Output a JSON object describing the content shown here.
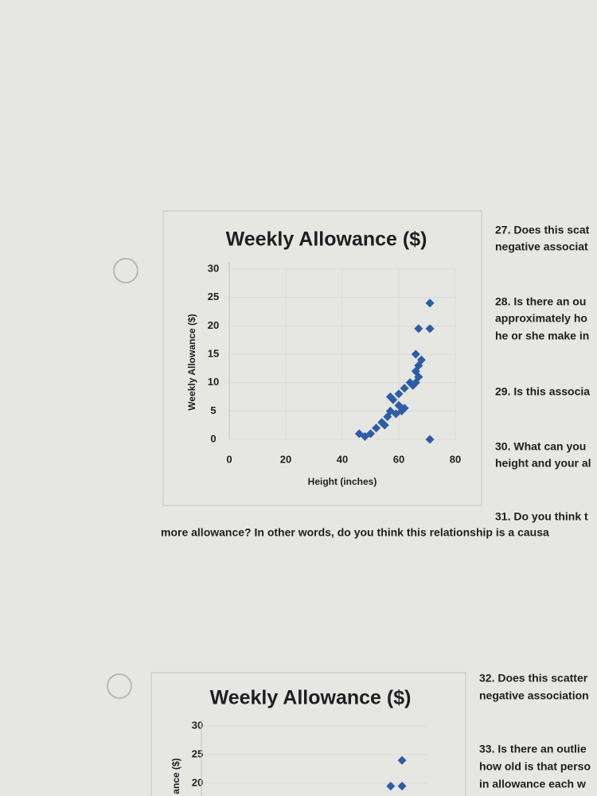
{
  "chart_data": [
    {
      "type": "scatter",
      "title": "Weekly Allowance ($)",
      "xlabel": "Height (inches)",
      "ylabel": "Weekly Allowance ($)",
      "xlim": [
        0,
        80
      ],
      "xticks": [
        0,
        20,
        40,
        60,
        80
      ],
      "ylim": [
        0,
        30
      ],
      "yticks": [
        0,
        5,
        10,
        15,
        20,
        25,
        30
      ],
      "grid": true,
      "series": [
        {
          "color": "#2e5ca8",
          "x": [
            46,
            48,
            50,
            52,
            54,
            55,
            56,
            57,
            59,
            60,
            61,
            58,
            62,
            57,
            60,
            62,
            64,
            66,
            67,
            65,
            66,
            67,
            68,
            66,
            67,
            71,
            71,
            71
          ],
          "values": [
            1,
            0.5,
            1,
            2,
            3,
            2.5,
            4,
            5,
            4.5,
            6,
            5,
            7,
            5.5,
            7.5,
            8,
            9,
            10,
            10,
            11,
            9.5,
            12,
            13,
            14,
            15,
            19.5,
            19.5,
            24,
            0
          ]
        }
      ]
    },
    {
      "type": "scatter",
      "title": "Weekly Allowance ($)",
      "ylabel": "ance ($)",
      "xlim": [
        0,
        80
      ],
      "ylim": [
        0,
        30
      ],
      "yticks": [
        20,
        25,
        30
      ],
      "grid": true,
      "series": [
        {
          "color": "#2e5ca8",
          "x": [
            71,
            67,
            71
          ],
          "values": [
            24,
            19.5,
            19.5
          ]
        }
      ]
    }
  ],
  "questions": [
    [
      "27. Does this scat",
      "negative associat"
    ],
    [
      "28. Is there an ou",
      "approximately ho",
      "he or she make in"
    ],
    [
      "29. Is this associa"
    ],
    [
      "30. What can you",
      "height and your al"
    ],
    [
      "31. Do you think t",
      "more allowance? In other words, do you think this relationship is a causa"
    ],
    [
      "32. Does this scatter",
      "negative association"
    ],
    [
      "33. Is there an outlie",
      "how old is that perso",
      "in allowance each w"
    ]
  ]
}
